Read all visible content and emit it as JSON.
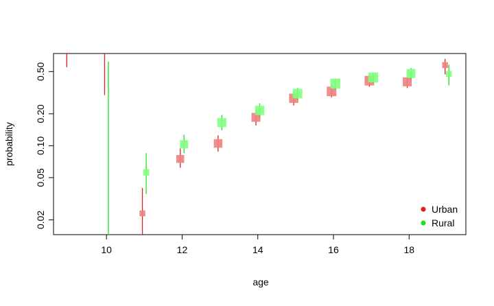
{
  "chart_data": {
    "type": "scatter",
    "title": "",
    "xlabel": "age",
    "ylabel": "probability",
    "x_ticks": [
      10,
      12,
      14,
      16,
      18
    ],
    "x_tick_labels": [
      "10",
      "12",
      "14",
      "16",
      "18"
    ],
    "y_ticks": [
      0.02,
      0.05,
      0.1,
      0.2,
      0.5
    ],
    "y_tick_labels": [
      "0.02",
      "0.05",
      "0.10",
      "0.20",
      "0.50"
    ],
    "xlim": [
      8.6,
      19.5
    ],
    "ylim": [
      0.0145,
      0.74
    ],
    "y_scale": "log",
    "grid": false,
    "legend_position": "bottom-right",
    "series": [
      {
        "name": "Urban",
        "color": "#DF2020",
        "fill": "#F08080",
        "points": [
          {
            "x": 9,
            "y": null,
            "lower": 0.55,
            "upper": 0.74,
            "weight": 0
          },
          {
            "x": 10,
            "y": null,
            "lower": 0.3,
            "upper": 0.74,
            "weight": 0
          },
          {
            "x": 11,
            "y": 0.023,
            "lower": 0.0145,
            "upper": 0.04,
            "weight": 0.25
          },
          {
            "x": 12,
            "y": 0.075,
            "lower": 0.062,
            "upper": 0.094,
            "weight": 0.55
          },
          {
            "x": 13,
            "y": 0.105,
            "lower": 0.088,
            "upper": 0.125,
            "weight": 0.65
          },
          {
            "x": 14,
            "y": 0.185,
            "lower": 0.155,
            "upper": 0.215,
            "weight": 0.7
          },
          {
            "x": 15,
            "y": 0.28,
            "lower": 0.24,
            "upper": 0.32,
            "weight": 0.75
          },
          {
            "x": 16,
            "y": 0.325,
            "lower": 0.285,
            "upper": 0.375,
            "weight": 0.8
          },
          {
            "x": 17,
            "y": 0.41,
            "lower": 0.36,
            "upper": 0.46,
            "weight": 0.8
          },
          {
            "x": 18,
            "y": 0.4,
            "lower": 0.35,
            "upper": 0.45,
            "weight": 0.7
          },
          {
            "x": 19,
            "y": 0.575,
            "lower": 0.47,
            "upper": 0.66,
            "weight": 0.25
          }
        ]
      },
      {
        "name": "Rural",
        "color": "#20DF20",
        "fill": "#80FF80",
        "points": [
          {
            "x": 10,
            "y": null,
            "lower": 0.0145,
            "upper": 0.62,
            "weight": 0
          },
          {
            "x": 11,
            "y": 0.056,
            "lower": 0.035,
            "upper": 0.085,
            "weight": 0.3
          },
          {
            "x": 12,
            "y": 0.103,
            "lower": 0.085,
            "upper": 0.127,
            "weight": 0.6
          },
          {
            "x": 13,
            "y": 0.165,
            "lower": 0.14,
            "upper": 0.195,
            "weight": 0.7
          },
          {
            "x": 14,
            "y": 0.215,
            "lower": 0.185,
            "upper": 0.25,
            "weight": 0.75
          },
          {
            "x": 15,
            "y": 0.31,
            "lower": 0.27,
            "upper": 0.35,
            "weight": 0.8
          },
          {
            "x": 16,
            "y": 0.385,
            "lower": 0.34,
            "upper": 0.43,
            "weight": 0.85
          },
          {
            "x": 17,
            "y": 0.44,
            "lower": 0.39,
            "upper": 0.49,
            "weight": 0.85
          },
          {
            "x": 18,
            "y": 0.48,
            "lower": 0.42,
            "upper": 0.54,
            "weight": 0.7
          },
          {
            "x": 19,
            "y": 0.475,
            "lower": 0.37,
            "upper": 0.58,
            "weight": 0.25
          }
        ]
      }
    ],
    "legend": [
      {
        "label": "Urban",
        "color": "#DF2020"
      },
      {
        "label": "Rural",
        "color": "#20DF20"
      }
    ]
  }
}
